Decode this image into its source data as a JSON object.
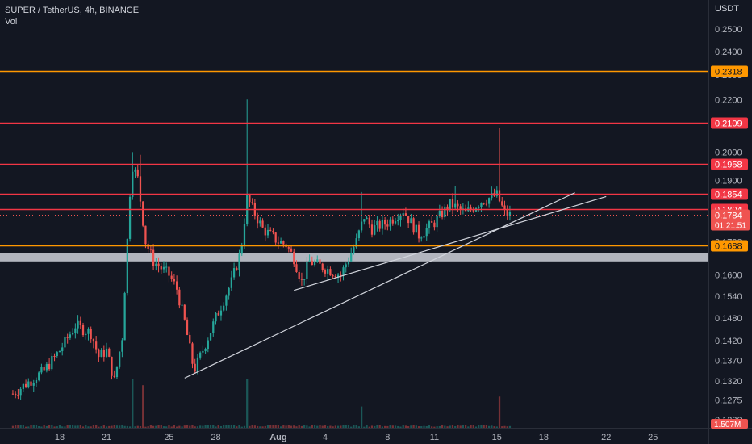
{
  "header": {
    "symbol": "SUPER / TetherUS",
    "interval": "4h",
    "exchange": "BINANCE",
    "title": "SUPER / TetherUS, 4h, BINANCE",
    "volume_label": "Vol"
  },
  "price_axis": {
    "currency": "USDT",
    "ticks": [
      "0.2500",
      "0.2400",
      "0.2300",
      "0.2200",
      "0.2100",
      "0.2000",
      "0.1900",
      "0.1800",
      "0.1700",
      "0.1600",
      "0.1540",
      "0.1480",
      "0.1420",
      "0.1370",
      "0.1320",
      "0.1275",
      "0.1230"
    ]
  },
  "time_axis": {
    "ticks": [
      "18",
      "21",
      "25",
      "28",
      "Aug",
      "4",
      "8",
      "11",
      "15",
      "18",
      "22",
      "25"
    ]
  },
  "colors": {
    "background": "#131722",
    "up": "#26a69a",
    "down": "#ef5350",
    "red_level": "#f23645",
    "orange_level": "#ff9800",
    "trendline": "#d1d4dc",
    "grey_zone": "#b2b5be"
  },
  "price_labels": {
    "level_2318": "0.2318",
    "level_2109": "0.2109",
    "level_1958": "0.1958",
    "level_1854": "0.1854",
    "level_1804": "0.1804",
    "last_price": "0.1784",
    "countdown": "01:21:51",
    "level_1688": "0.1688",
    "volume": "1.507M"
  },
  "chart_data": {
    "type": "candlestick",
    "title": "SUPER / TetherUS, 4h, BINANCE",
    "y_axis_label": "USDT",
    "yscale": "log",
    "ylim": [
      0.1205,
      0.262
    ],
    "x_axis_range": [
      "Jul 15",
      "Aug 25"
    ],
    "last_price": 0.1784,
    "horizontal_levels": [
      {
        "price": 0.2318,
        "color": "orange"
      },
      {
        "price": 0.2109,
        "color": "red"
      },
      {
        "price": 0.1958,
        "color": "red"
      },
      {
        "price": 0.1854,
        "color": "red"
      },
      {
        "price": 0.1804,
        "color": "red"
      },
      {
        "price": 0.1688,
        "color": "orange"
      }
    ],
    "zones": [
      {
        "from": 0.164,
        "to": 0.1665,
        "color": "grey"
      }
    ],
    "trendlines": [
      {
        "from": {
          "date": "Jul 26",
          "price": 0.1327
        },
        "to": {
          "date": "Aug 20",
          "price": 0.1858
        }
      },
      {
        "from": {
          "date": "Aug 2",
          "price": 0.1556
        },
        "to": {
          "date": "Aug 22",
          "price": 0.1845
        }
      }
    ],
    "waypoints": [
      [
        "Jul 15",
        0.129
      ],
      [
        "Jul 17",
        0.1345
      ],
      [
        "Jul 18",
        0.1395
      ],
      [
        "Jul 19",
        0.146
      ],
      [
        "Jul 20",
        0.144
      ],
      [
        "Jul 20.5",
        0.138
      ],
      [
        "Jul 21",
        0.1395
      ],
      [
        "Jul 21.5",
        0.132
      ],
      [
        "Jul 22",
        0.143
      ],
      [
        "Jul 22.6",
        0.196
      ],
      [
        "Jul 23",
        0.1905
      ],
      [
        "Jul 23.5",
        0.17
      ],
      [
        "Jul 24",
        0.164
      ],
      [
        "Jul 25",
        0.16
      ],
      [
        "Jul 25.5",
        0.156
      ],
      [
        "Jul 26",
        0.147
      ],
      [
        "Jul 26.6",
        0.1345
      ],
      [
        "Jul 27",
        0.138
      ],
      [
        "Jul 28",
        0.148
      ],
      [
        "Jul 29",
        0.158
      ],
      [
        "Jul 29.6",
        0.167
      ],
      [
        "Jul 30",
        0.184
      ],
      [
        "Jul 31",
        0.174
      ],
      [
        "Aug 1",
        0.17
      ],
      [
        "Aug 1.5",
        0.169
      ],
      [
        "Aug 2",
        0.165
      ],
      [
        "Aug 2.5",
        0.158
      ],
      [
        "Aug 3",
        0.164
      ],
      [
        "Aug 4",
        0.162
      ],
      [
        "Aug 5",
        0.16
      ],
      [
        "Aug 6",
        0.17
      ],
      [
        "Aug 6.5",
        0.178
      ],
      [
        "Aug 7",
        0.174
      ],
      [
        "Aug 8",
        0.176
      ],
      [
        "Aug 9",
        0.18
      ],
      [
        "Aug 10",
        0.172
      ],
      [
        "Aug 11",
        0.176
      ],
      [
        "Aug 12",
        0.182
      ],
      [
        "Aug 13",
        0.179
      ],
      [
        "Aug 14",
        0.183
      ],
      [
        "Aug 15",
        0.185
      ],
      [
        "Aug 15.5",
        0.179
      ],
      [
        "Aug 15.9",
        0.1784
      ]
    ],
    "spikes": [
      [
        "Jul 22.6",
        0.2
      ],
      [
        "Jul 23.2",
        0.199
      ],
      [
        "Jul 30",
        0.22
      ],
      [
        "Aug 6.3",
        0.186
      ],
      [
        "Aug 12.3",
        0.188
      ],
      [
        "Aug 15.1",
        0.209
      ]
    ],
    "volume_spikes": [
      [
        "Jul 22.7",
        5
      ],
      [
        "Jul 23.3",
        3
      ],
      [
        "Jul 30",
        4.5
      ],
      [
        "Aug 15.1",
        2.2
      ],
      [
        "Aug 6.3",
        1.5
      ]
    ]
  }
}
